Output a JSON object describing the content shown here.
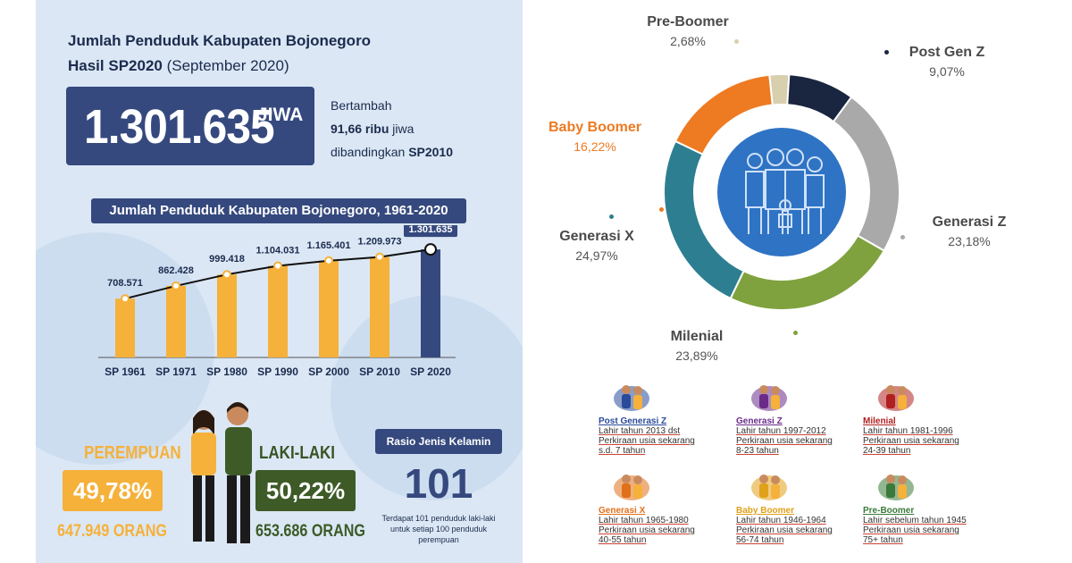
{
  "header": {
    "title_line1": "Jumlah Penduduk Kabupaten Bojonegoro",
    "title_line2_bold": "Hasil SP2020",
    "title_line2_rest": " (September 2020)"
  },
  "total": {
    "value": "1.301.635",
    "unit": "JIWA",
    "increase_line1": "Bertambah",
    "increase_bold": "91,66 ribu",
    "increase_line2_rest": " jiwa",
    "increase_line3": "dibandingkan ",
    "increase_line3_bold": "SP2010"
  },
  "chart_data": [
    {
      "type": "bar",
      "title": "Jumlah Penduduk Kabupaten Bojonegoro, 1961-2020",
      "categories": [
        "SP 1961",
        "SP 1971",
        "SP 1980",
        "SP 1990",
        "SP 2000",
        "SP 2010",
        "SP 2020"
      ],
      "values": [
        708571,
        862428,
        999418,
        1104031,
        1165401,
        1209973,
        1301635
      ],
      "value_labels": [
        "708.571",
        "862.428",
        "999.418",
        "1.104.031",
        "1.165.401",
        "1.209.973",
        "1.301.635"
      ],
      "bar_color": "#f5b13a",
      "highlight_color": "#35497e",
      "ylim": [
        0,
        1400000
      ]
    },
    {
      "type": "pie",
      "categories": [
        "Pre-Boomer",
        "Post Gen Z",
        "Generasi Z",
        "Milenial",
        "Generasi X",
        "Baby Boomer"
      ],
      "values": [
        2.68,
        9.07,
        23.18,
        23.89,
        24.97,
        16.22
      ],
      "value_labels": [
        "2,68%",
        "9,07%",
        "23,18%",
        "23,89%",
        "24,97%",
        "16,22%"
      ],
      "colors": [
        "#d8cfae",
        "#1a2540",
        "#a9a9a9",
        "#7fa23e",
        "#2d7e91",
        "#ee7a22"
      ]
    }
  ],
  "gender": {
    "female_label": "PEREMPUAN",
    "female_pct": "49,78%",
    "female_count": "647.949 ORANG",
    "male_label": "LAKI-LAKI",
    "male_pct": "50,22%",
    "male_count": "653.686 ORANG"
  },
  "ratio": {
    "title": "Rasio Jenis Kelamin",
    "value": "101",
    "note": "Terdapat 101 penduduk laki-laki untuk setiap 100 penduduk perempuan"
  },
  "generations": [
    {
      "name": "Post Generasi Z",
      "line1": "Lahir tahun 2013 dst",
      "line2": "Perkiraan usia sekarang",
      "line3": "s.d. 7 tahun",
      "color": "#2a4a9a"
    },
    {
      "name": "Generasi Z",
      "line1": "Lahir tahun 1997-2012",
      "line2": "Perkiraan usia sekarang",
      "line3": "8-23 tahun",
      "color": "#6a2a8a"
    },
    {
      "name": "Milenial",
      "line1": "Lahir tahun 1981-1996",
      "line2": "Perkiraan usia sekarang",
      "line3": "24-39 tahun",
      "color": "#b02020"
    },
    {
      "name": "Generasi X",
      "line1": "Lahir tahun 1965-1980",
      "line2": "Perkiraan usia sekarang",
      "line3": "40-55 tahun",
      "color": "#e0701a"
    },
    {
      "name": "Baby Boomer",
      "line1": "Lahir tahun 1946-1964",
      "line2": "Perkiraan usia sekarang",
      "line3": "56-74 tahun",
      "color": "#e0a01a"
    },
    {
      "name": "Pre-Boomer",
      "line1": "Lahir sebelum tahun 1945",
      "line2": "Perkiraan usia sekarang",
      "line3": "75+ tahun",
      "color": "#3a7a3a"
    }
  ]
}
